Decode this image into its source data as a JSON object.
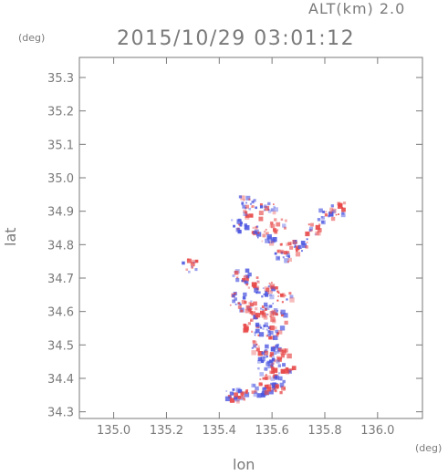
{
  "header": {
    "altitude_label": "ALT(km) 2.0",
    "datetime_label": "2015/10/29 03:01:12"
  },
  "chart_data": {
    "type": "scatter",
    "title": "2015/10/29 03:01:12",
    "xlabel": "lon",
    "ylabel": "lat",
    "x_unit": "(deg)",
    "y_unit": "(deg)",
    "xlim": [
      134.87,
      136.17
    ],
    "ylim": [
      34.28,
      35.36
    ],
    "x_ticks": [
      135.0,
      135.2,
      135.4,
      135.6,
      135.8,
      136.0
    ],
    "x_tick_labels": [
      "135.0",
      "135.2",
      "135.4",
      "135.6",
      "135.8",
      "136.0"
    ],
    "y_ticks": [
      34.3,
      34.4,
      34.5,
      34.6,
      34.7,
      34.8,
      34.9,
      35.0,
      35.1,
      35.2,
      35.3
    ],
    "y_tick_labels": [
      "34.3",
      "34.4",
      "34.5",
      "34.6",
      "34.7",
      "34.8",
      "34.9",
      "35.0",
      "35.1",
      "35.2",
      "35.3"
    ],
    "grid": false,
    "colors": {
      "positive": "#e84848",
      "negative": "#4a55e0",
      "axis": "#7a7a7a"
    },
    "points": [
      {
        "lon": 135.5,
        "lat": 34.93,
        "sign": "neg"
      },
      {
        "lon": 135.52,
        "lat": 34.9,
        "sign": "pos"
      },
      {
        "lon": 135.47,
        "lat": 34.86,
        "sign": "neg"
      },
      {
        "lon": 135.55,
        "lat": 34.85,
        "sign": "pos"
      },
      {
        "lon": 135.58,
        "lat": 34.91,
        "sign": "neg"
      },
      {
        "lon": 135.62,
        "lat": 34.86,
        "sign": "pos"
      },
      {
        "lon": 135.66,
        "lat": 34.79,
        "sign": "pos"
      },
      {
        "lon": 135.64,
        "lat": 34.77,
        "sign": "pos"
      },
      {
        "lon": 135.7,
        "lat": 34.8,
        "sign": "neg"
      },
      {
        "lon": 135.75,
        "lat": 34.85,
        "sign": "pos"
      },
      {
        "lon": 135.8,
        "lat": 34.89,
        "sign": "neg"
      },
      {
        "lon": 135.84,
        "lat": 34.91,
        "sign": "pos"
      },
      {
        "lon": 135.57,
        "lat": 34.82,
        "sign": "neg"
      },
      {
        "lon": 135.28,
        "lat": 34.74,
        "sign": "neg"
      },
      {
        "lon": 135.48,
        "lat": 34.71,
        "sign": "neg"
      },
      {
        "lon": 135.52,
        "lat": 34.69,
        "sign": "pos"
      },
      {
        "lon": 135.56,
        "lat": 34.66,
        "sign": "neg"
      },
      {
        "lon": 135.6,
        "lat": 34.67,
        "sign": "pos"
      },
      {
        "lon": 135.64,
        "lat": 34.65,
        "sign": "pos"
      },
      {
        "lon": 135.47,
        "lat": 34.64,
        "sign": "neg"
      },
      {
        "lon": 135.5,
        "lat": 34.62,
        "sign": "pos"
      },
      {
        "lon": 135.54,
        "lat": 34.6,
        "sign": "pos"
      },
      {
        "lon": 135.58,
        "lat": 34.61,
        "sign": "neg"
      },
      {
        "lon": 135.62,
        "lat": 34.59,
        "sign": "pos"
      },
      {
        "lon": 135.52,
        "lat": 34.56,
        "sign": "pos"
      },
      {
        "lon": 135.56,
        "lat": 34.55,
        "sign": "neg"
      },
      {
        "lon": 135.6,
        "lat": 34.54,
        "sign": "pos"
      },
      {
        "lon": 135.55,
        "lat": 34.5,
        "sign": "pos"
      },
      {
        "lon": 135.59,
        "lat": 34.49,
        "sign": "neg"
      },
      {
        "lon": 135.63,
        "lat": 34.48,
        "sign": "pos"
      },
      {
        "lon": 135.57,
        "lat": 34.45,
        "sign": "neg"
      },
      {
        "lon": 135.61,
        "lat": 34.44,
        "sign": "pos"
      },
      {
        "lon": 135.65,
        "lat": 34.43,
        "sign": "pos"
      },
      {
        "lon": 135.58,
        "lat": 34.4,
        "sign": "pos"
      },
      {
        "lon": 135.62,
        "lat": 34.39,
        "sign": "neg"
      },
      {
        "lon": 135.55,
        "lat": 34.37,
        "sign": "neg"
      },
      {
        "lon": 135.6,
        "lat": 34.37,
        "sign": "pos"
      },
      {
        "lon": 135.45,
        "lat": 34.36,
        "sign": "neg"
      },
      {
        "lon": 135.48,
        "lat": 34.35,
        "sign": "pos"
      }
    ]
  }
}
